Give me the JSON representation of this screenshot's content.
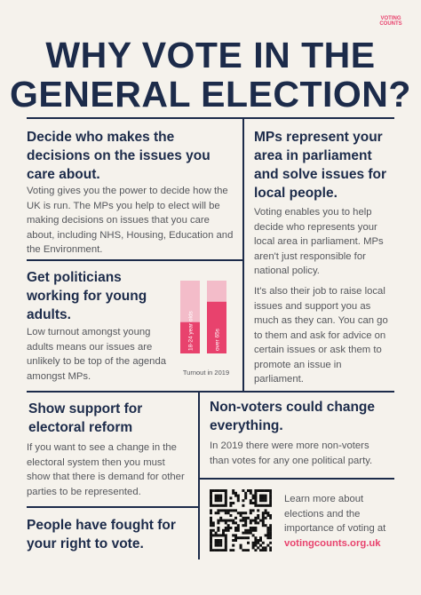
{
  "logo": "VOTING COUNTS",
  "title": "WHY VOTE IN THE GENERAL ELECTION?",
  "sections": [
    {
      "heading": "Decide who makes the decisions on the issues you care about.",
      "body": [
        "Voting gives you the power to decide how the UK is run. The MPs you help to elect will be making decisions on issues that you care about, including NHS, Housing, Education and the Environment."
      ]
    },
    {
      "heading": "MPs represent your area in parliament and solve issues for local people.",
      "body": [
        "Voting enables you to help decide who represents your local area in parliament. MPs aren't just responsible for national policy.",
        "It's also their job to raise local issues and support you as much as they can. You can go to them and ask for advice on certain issues or ask them to promote an issue in parliament."
      ]
    },
    {
      "heading": "Get politicians working for young adults.",
      "body": [
        "Low turnout amongst young adults means our issues are unlikely to be top of the agenda amongst MPs."
      ]
    },
    {
      "heading": "Show support for electoral reform",
      "body": [
        "If you want to see a change in the electoral system then you must show that there is demand for other parties to be represented."
      ]
    },
    {
      "heading": "Non-voters could change everything.",
      "body": [
        "In 2019 there were more non-voters than votes for any one political party."
      ]
    },
    {
      "heading": "People have fought  for your right to vote.",
      "body": []
    }
  ],
  "turnout_chart": {
    "categories": [
      "18-24 year olds",
      "over 65s"
    ],
    "values": [
      43,
      71
    ],
    "ylim": [
      0,
      100
    ],
    "caption": "Turnout in 2019"
  },
  "more_info": {
    "text": "Learn more about elections and the importance of voting at",
    "link": "votingcounts.org.uk"
  }
}
